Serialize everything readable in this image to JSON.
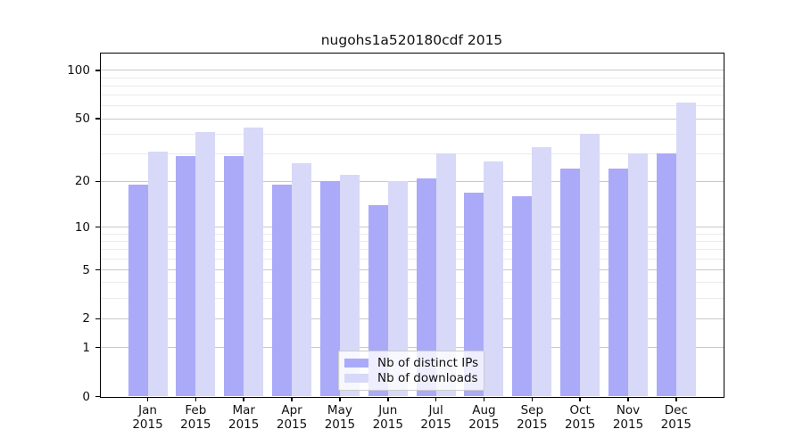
{
  "chart_data": {
    "type": "bar",
    "title": "nugohs1a520180cdf 2015",
    "categories": [
      "Jan 2015",
      "Feb 2015",
      "Mar 2015",
      "Apr 2015",
      "May 2015",
      "Jun 2015",
      "Jul 2015",
      "Aug 2015",
      "Sep 2015",
      "Oct 2015",
      "Nov 2015",
      "Dec 2015"
    ],
    "series": [
      {
        "name": "Nb of distinct IPs",
        "color": "#aaaaf8",
        "values": [
          19,
          29,
          29,
          19,
          20,
          14,
          21,
          17,
          16,
          24,
          24,
          30
        ]
      },
      {
        "name": "Nb of downloads",
        "color": "#d8d8f8",
        "values": [
          31,
          41,
          44,
          26,
          22,
          20,
          30,
          27,
          33,
          40,
          30,
          63
        ]
      }
    ],
    "xlabel": "",
    "ylabel": "",
    "y_axis": {
      "scale": "log10(1+y)",
      "tick_labels": [
        "100",
        "50",
        "20",
        "10",
        "5",
        "2",
        "1",
        "0"
      ],
      "tick_values": [
        100,
        50,
        20,
        10,
        5,
        2,
        1,
        0
      ],
      "minor_gridline_values": [
        3,
        4,
        6,
        7,
        8,
        9,
        30,
        40,
        60,
        70,
        80,
        90
      ],
      "ylim": [
        0,
        128
      ]
    },
    "legend_position": "bottom-center",
    "grid": true,
    "colors": {
      "major_grid": "#c9c9c9",
      "minor_grid": "#eaeaea",
      "axis": "#000000",
      "text": "#111111",
      "background": "#ffffff"
    }
  }
}
